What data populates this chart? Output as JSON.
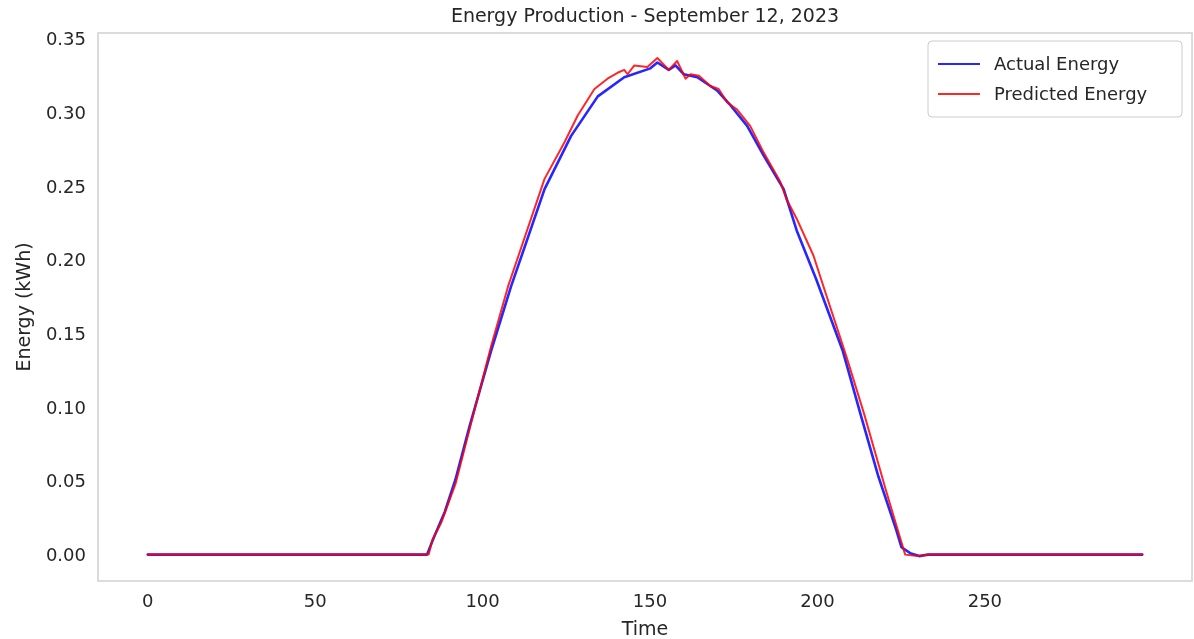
{
  "chart_data": {
    "type": "line",
    "title": "Energy Production - September 12, 2023",
    "xlabel": "Time",
    "ylabel": "Energy (kWh)",
    "xlim": [
      -14.85,
      311.85
    ],
    "ylim": [
      -0.0179,
      0.354
    ],
    "xticks": [
      0,
      50,
      100,
      150,
      200,
      250
    ],
    "yticks": [
      {
        "value": 0,
        "label": "0.00"
      },
      {
        "value": 0.05,
        "label": "0.05"
      },
      {
        "value": 0.1,
        "label": "0.10"
      },
      {
        "value": 0.15,
        "label": "0.15"
      },
      {
        "value": 0.2,
        "label": "0.20"
      },
      {
        "value": 0.25,
        "label": "0.25"
      },
      {
        "value": 0.3,
        "label": "0.30"
      },
      {
        "value": 0.35,
        "label": "0.35"
      }
    ],
    "grid": false,
    "legend": "top right",
    "line_style": "solid",
    "series": [
      {
        "name": "Actual Energy",
        "color": "#0000ff",
        "x": [
          0,
          83.4,
          85.5,
          88.7,
          91.9,
          96.1,
          102.5,
          108.5,
          118.5,
          126.4,
          134.4,
          142.3,
          150.1,
          152.2,
          155.6,
          157.6,
          160.1,
          164.1,
          170,
          174,
          179,
          183.9,
          189.9,
          193.8,
          199.6,
          207.6,
          212.9,
          218.2,
          223.5,
          225.1,
          227.7,
          230.4,
          233,
          297
        ],
        "values": [
          0,
          0,
          0.012,
          0.029,
          0.051,
          0.087,
          0.138,
          0.182,
          0.248,
          0.284,
          0.311,
          0.324,
          0.33,
          0.334,
          0.329,
          0.332,
          0.326,
          0.324,
          0.315,
          0.305,
          0.291,
          0.271,
          0.248,
          0.22,
          0.187,
          0.138,
          0.095,
          0.053,
          0.017,
          0.005,
          0.001,
          -0.001,
          0,
          0
        ]
      },
      {
        "name": "Predicted Energy",
        "color": "#ff0000",
        "x": [
          0,
          83.9,
          85,
          87.7,
          91.9,
          96.1,
          102.5,
          107.6,
          118.5,
          124.5,
          128.4,
          133.4,
          137.3,
          140.3,
          142.3,
          143.3,
          145.3,
          149.2,
          152.2,
          155.6,
          158.1,
          160.6,
          162.1,
          164.6,
          168,
          170.5,
          173,
          176,
          179.9,
          183.9,
          188.9,
          190.8,
          193.8,
          198.8,
          201.8,
          208.7,
          214,
          220.4,
          224.6,
          226.2,
          230,
          233,
          297
        ],
        "values": [
          0,
          0,
          0.01,
          0.022,
          0.048,
          0.085,
          0.141,
          0.182,
          0.255,
          0.28,
          0.298,
          0.316,
          0.323,
          0.327,
          0.329,
          0.326,
          0.332,
          0.331,
          0.337,
          0.329,
          0.335,
          0.323,
          0.326,
          0.325,
          0.318,
          0.316,
          0.307,
          0.302,
          0.291,
          0.273,
          0.253,
          0.241,
          0.228,
          0.203,
          0.182,
          0.134,
          0.095,
          0.044,
          0.012,
          0,
          -0.001,
          0,
          0
        ]
      }
    ]
  }
}
